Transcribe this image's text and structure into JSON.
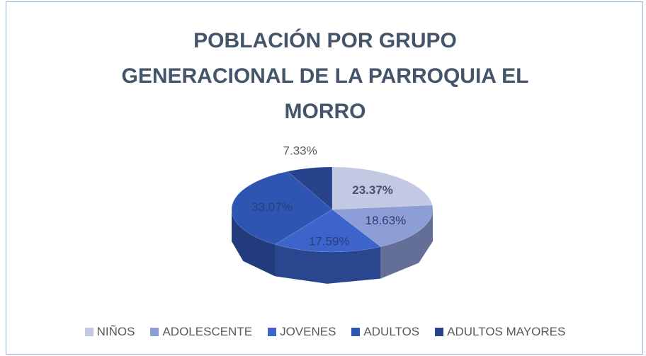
{
  "chart_data": {
    "type": "pie3d",
    "title": "POBLACIÓN POR GRUPO\nGENERACIONAL DE LA PARROQUIA EL\nMORRO",
    "categories": [
      "NIÑOS",
      "ADOLESCENTE",
      "JOVENES",
      "ADULTOS",
      "ADULTOS MAYORES"
    ],
    "values": [
      23.37,
      18.63,
      17.59,
      33.07,
      7.33
    ],
    "value_labels": [
      "23.37%",
      "18.63%",
      "17.59%",
      "33.07%",
      "7.33%"
    ],
    "colors": [
      "#c3c9e2",
      "#8d9ed6",
      "#3c64cb",
      "#2f55b2",
      "#28428c"
    ],
    "legend": "bottom"
  }
}
